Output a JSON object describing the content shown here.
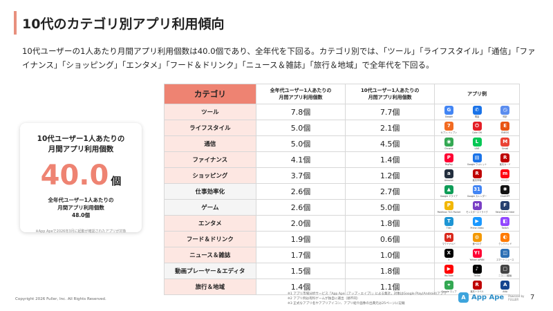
{
  "title": "10代のカテゴリ別アプリ利用傾向",
  "description": "10代ユーザーの1人あたり月間アプリ利用個数は40.0個であり、全年代を下回る。カテゴリ別では、「ツール」「ライフスタイル」「通信」「ファイナンス」「ショッピング」「エンタメ」「フード＆ドリンク」「ニュース＆雑誌」「旅行＆地域」で全年代を下回る。",
  "stat_card": {
    "heading_line1": "10代ユーザー1人あたりの",
    "heading_line2": "月間アプリ利用個数",
    "value": "40.0",
    "unit": "個",
    "sub_line1": "全年代ユーザー1人あたりの",
    "sub_line2": "月間アプリ利用個数",
    "sub_value": "48.0個",
    "note": "※App Apeで2026年3月に起動が確認されたアプリが対象"
  },
  "table": {
    "headers": {
      "category": "カテゴリ",
      "all_line1": "全年代ユーザー1人あたりの",
      "all_line2": "月間アプリ利用個数",
      "teen_line1": "10代ユーザー1人あたりの",
      "teen_line2": "月間アプリ利用個数",
      "apps": "アプリ例"
    },
    "rows": [
      {
        "category": "ツール",
        "all": "7.8個",
        "teen": "7.7個",
        "highlight": true,
        "apps": [
          {
            "name": "Google",
            "glyph": "G",
            "color": "#4285f4"
          },
          {
            "name": "電話",
            "glyph": "✆",
            "color": "#1a73e8"
          },
          {
            "name": "時計",
            "glyph": "◷",
            "color": "#5b8def"
          }
        ]
      },
      {
        "category": "ライフスタイル",
        "all": "5.0個",
        "teen": "2.1個",
        "highlight": true,
        "apps": [
          {
            "name": "セブン-イレブン",
            "glyph": "7",
            "color": "#f26b22"
          },
          {
            "name": "Coke ON",
            "glyph": "⏻",
            "color": "#e41e26"
          },
          {
            "name": "ENEOS",
            "glyph": "E",
            "color": "#e95513"
          }
        ]
      },
      {
        "category": "通信",
        "all": "5.0個",
        "teen": "4.5個",
        "highlight": true,
        "apps": [
          {
            "name": "Chrome",
            "glyph": "◉",
            "color": "#34a853"
          },
          {
            "name": "LINE",
            "glyph": "L",
            "color": "#06c755"
          },
          {
            "name": "Gmail",
            "glyph": "M",
            "color": "#ea4335"
          }
        ]
      },
      {
        "category": "ファイナンス",
        "all": "4.1個",
        "teen": "1.4個",
        "highlight": true,
        "apps": [
          {
            "name": "PayPay",
            "glyph": "P",
            "color": "#ff0033"
          },
          {
            "name": "Google ウォレット",
            "glyph": "▤",
            "color": "#1a73e8"
          },
          {
            "name": "楽天カード",
            "glyph": "R",
            "color": "#bf0000"
          }
        ]
      },
      {
        "category": "ショッピング",
        "all": "3.7個",
        "teen": "1.2個",
        "highlight": true,
        "apps": [
          {
            "name": "Amazon",
            "glyph": "a",
            "color": "#232f3e"
          },
          {
            "name": "楽天市場",
            "glyph": "R",
            "color": "#bf0000"
          },
          {
            "name": "メルカリ",
            "glyph": "m",
            "color": "#ff0211"
          }
        ]
      },
      {
        "category": "仕事効率化",
        "all": "2.6個",
        "teen": "2.7個",
        "highlight": false,
        "apps": [
          {
            "name": "Google ドライブ",
            "glyph": "▲",
            "color": "#0f9d58"
          },
          {
            "name": "Google カレンダー",
            "glyph": "31",
            "color": "#4285f4"
          },
          {
            "name": "ChatGPT",
            "glyph": "✺",
            "color": "#111111"
          }
        ]
      },
      {
        "category": "ゲーム",
        "all": "2.6個",
        "teen": "5.0個",
        "highlight": false,
        "apps": [
          {
            "name": "Pokémon TCG Pocket",
            "glyph": "P",
            "color": "#f2b705"
          },
          {
            "name": "モンスターストライク",
            "glyph": "M",
            "color": "#7a3fc4"
          },
          {
            "name": "Fate/Grand Order",
            "glyph": "F",
            "color": "#27406f"
          }
        ]
      },
      {
        "category": "エンタメ",
        "all": "2.0個",
        "teen": "1.8個",
        "highlight": true,
        "apps": [
          {
            "name": "TVer",
            "glyph": "T",
            "color": "#1d95d4"
          },
          {
            "name": "Prime Video",
            "glyph": "▶",
            "color": "#1a98ff"
          },
          {
            "name": "Twitch",
            "glyph": "◧",
            "color": "#9146ff"
          }
        ]
      },
      {
        "category": "フード＆ドリンク",
        "all": "1.9個",
        "teen": "0.6個",
        "highlight": true,
        "apps": [
          {
            "name": "マクドナルド",
            "glyph": "M",
            "color": "#da291c"
          },
          {
            "name": "食べログ",
            "glyph": "◍",
            "color": "#f39800"
          },
          {
            "name": "クックパッド",
            "glyph": "◐",
            "color": "#ff7a00"
          }
        ]
      },
      {
        "category": "ニュース＆雑誌",
        "all": "1.7個",
        "teen": "1.0個",
        "highlight": true,
        "apps": [
          {
            "name": "X",
            "glyph": "X",
            "color": "#000000"
          },
          {
            "name": "Yahoo! JAPAN",
            "glyph": "Y!",
            "color": "#ff0033"
          },
          {
            "name": "スマートニュース",
            "glyph": "◫",
            "color": "#2c6fb4"
          }
        ]
      },
      {
        "category": "動画プレーヤー＆エディタ",
        "all": "1.5個",
        "teen": "1.8個",
        "highlight": false,
        "apps": [
          {
            "name": "YouTube",
            "glyph": "▶",
            "color": "#ff0000"
          },
          {
            "name": "TikTok",
            "glyph": "♪",
            "color": "#000000"
          },
          {
            "name": "ニコニコ動画",
            "glyph": "▢",
            "color": "#444444"
          }
        ]
      },
      {
        "category": "旅行＆地域",
        "all": "1.4個",
        "teen": "1.1個",
        "highlight": true,
        "apps": [
          {
            "name": "Google マップ",
            "glyph": "⌖",
            "color": "#34a853"
          },
          {
            "name": "楽天トラベル",
            "glyph": "R",
            "color": "#bf0000"
          },
          {
            "name": "ANA",
            "glyph": "A",
            "color": "#13448f"
          }
        ]
      }
    ]
  },
  "footnotes": [
    "※1 アプリ市場分析サービス「App Ape（アップ・エイプ）」による集計。対象はGoogle Play(Android)アプリ",
    "※2 アプリ例は有料ゲームが独自に選出（順不同）",
    "※3 正式なアプリ名やアプリアイコン、アプリ紹介画像の出典元は25ページに記載"
  ],
  "copyright": "Copyright 2026 Fuller, Inc. All Rights Reserved.",
  "logo": {
    "mark": "A",
    "text": "App Ape",
    "by_line1": "Powered by",
    "by_line2": "FULLER"
  },
  "page_number": "7",
  "colors": {
    "accent": "#ee8372",
    "highlight_row": "#fde7e2",
    "logo_blue": "#2f8fc8"
  }
}
